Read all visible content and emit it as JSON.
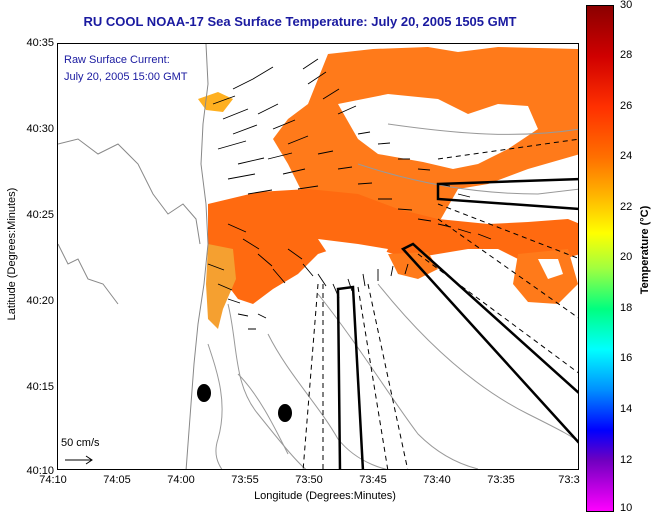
{
  "title": "RU COOL  NOAA-17  Sea Surface Temperature:  July 20, 2005 1505 GMT",
  "map": {
    "annotation_line1": "Raw Surface Current:",
    "annotation_line2": "July 20, 2005 15:00 GMT",
    "scale_label": "50 cm/s",
    "y_axis_title": "Latitude (Degrees:Minutes)",
    "x_axis_title": "Longitude (Degrees:Minutes)",
    "y_ticks": [
      "40:35",
      "40:30",
      "40:25",
      "40:20",
      "40:15",
      "40:10"
    ],
    "x_ticks": [
      "74:10",
      "74:05",
      "74:00",
      "73:55",
      "73:50",
      "73:45",
      "73:40",
      "73:35",
      "73:3"
    ]
  },
  "colorbar": {
    "title": "Temperature (°C)",
    "ticks": [
      "30",
      "28",
      "26",
      "24",
      "22",
      "20",
      "18",
      "16",
      "14",
      "12",
      "10"
    ]
  },
  "colors": {
    "title_text": "#1a1aa0",
    "sst_warm": "#ff7a1a",
    "sst_hot": "#ff5a00"
  }
}
